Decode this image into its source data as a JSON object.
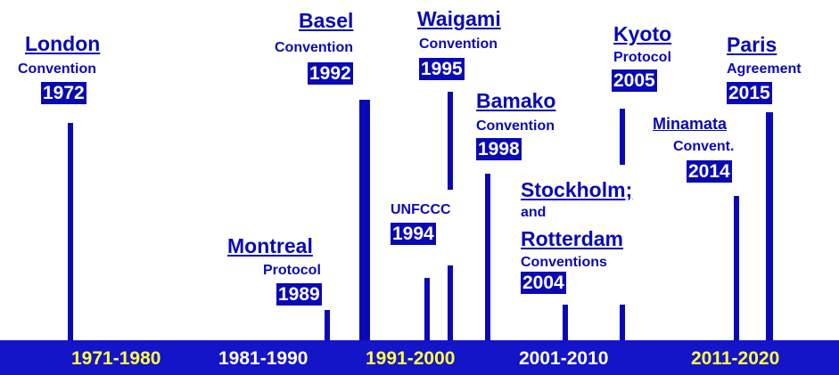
{
  "events": [
    {
      "title": "London",
      "sub": "Convention",
      "year": "1972"
    },
    {
      "title": "Montreal",
      "sub": "Protocol",
      "year": "1989"
    },
    {
      "title": "Basel",
      "sub": "Convention",
      "year": "1992"
    },
    {
      "title": "UNFCCC",
      "year": "1994"
    },
    {
      "title": "Waigami",
      "sub": "Convention",
      "year": "1995"
    },
    {
      "title": "Bamako",
      "sub": "Convention",
      "year": "1998"
    },
    {
      "title": "Stockholm;",
      "sub": "and",
      "title2": "Rotterdam",
      "sub2": "Conventions",
      "year": "2004"
    },
    {
      "title": "Kyoto",
      "sub": "Protocol",
      "year": "2005"
    },
    {
      "title": "Minamata",
      "sub": "Convent.",
      "year": "2014"
    },
    {
      "title": "Paris",
      "sub": "Agreement",
      "year": "2015"
    }
  ],
  "decades": [
    "1971-1980",
    "1981-1990",
    "1991-2000",
    "2001-2010",
    "2011-2020"
  ]
}
